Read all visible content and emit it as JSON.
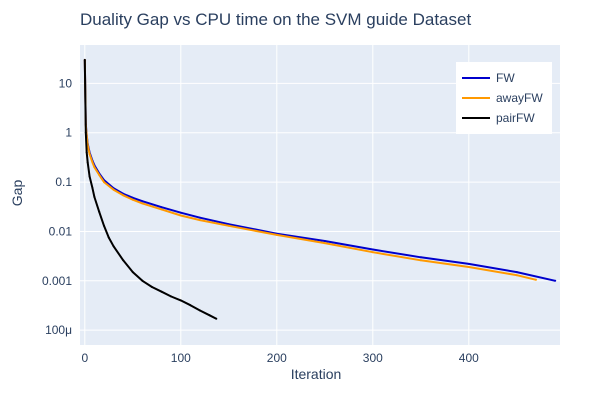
{
  "chart_data": {
    "type": "line",
    "title": "Duality Gap vs CPU time on the SVM guide Dataset",
    "xlabel": "Iteration",
    "ylabel": "Gap",
    "y_scale": "log",
    "x_range": [
      -5,
      495
    ],
    "y_range": [
      5e-05,
      60
    ],
    "x_ticks": [
      0,
      100,
      200,
      300,
      400
    ],
    "y_ticks": [
      {
        "value": 10,
        "label": "10"
      },
      {
        "value": 1,
        "label": "1"
      },
      {
        "value": 0.1,
        "label": "0.1"
      },
      {
        "value": 0.01,
        "label": "0.01"
      },
      {
        "value": 0.001,
        "label": "0.001"
      },
      {
        "value": 0.0001,
        "label": "100μ"
      }
    ],
    "grid": true,
    "legend_position": "top-right",
    "series": [
      {
        "name": "FW",
        "color": "#0000cc",
        "x": [
          0,
          1,
          2,
          3,
          5,
          8,
          10,
          15,
          20,
          30,
          40,
          50,
          60,
          80,
          100,
          120,
          150,
          200,
          250,
          300,
          350,
          400,
          450,
          490
        ],
        "y": [
          30,
          1.5,
          0.9,
          0.6,
          0.4,
          0.27,
          0.22,
          0.15,
          0.11,
          0.075,
          0.058,
          0.048,
          0.041,
          0.031,
          0.024,
          0.019,
          0.014,
          0.009,
          0.0064,
          0.0043,
          0.003,
          0.0022,
          0.0015,
          0.001
        ]
      },
      {
        "name": "awayFW",
        "color": "#ff9900",
        "x": [
          0,
          1,
          2,
          3,
          5,
          8,
          10,
          15,
          20,
          30,
          40,
          50,
          60,
          80,
          100,
          120,
          150,
          200,
          250,
          300,
          350,
          400,
          450,
          470
        ],
        "y": [
          30,
          1.4,
          0.85,
          0.56,
          0.37,
          0.25,
          0.2,
          0.14,
          0.1,
          0.07,
          0.054,
          0.044,
          0.037,
          0.028,
          0.021,
          0.017,
          0.013,
          0.0085,
          0.0058,
          0.0038,
          0.0026,
          0.0019,
          0.0013,
          0.00105
        ]
      },
      {
        "name": "pairFW",
        "color": "#000000",
        "x": [
          0,
          1,
          2,
          3,
          5,
          8,
          10,
          15,
          20,
          25,
          30,
          40,
          50,
          60,
          70,
          80,
          90,
          100,
          110,
          120,
          130,
          137
        ],
        "y": [
          30,
          1.0,
          0.4,
          0.25,
          0.13,
          0.075,
          0.05,
          0.025,
          0.013,
          0.0075,
          0.005,
          0.0026,
          0.0015,
          0.001,
          0.00075,
          0.0006,
          0.00048,
          0.0004,
          0.00032,
          0.00025,
          0.0002,
          0.00017
        ]
      }
    ]
  }
}
